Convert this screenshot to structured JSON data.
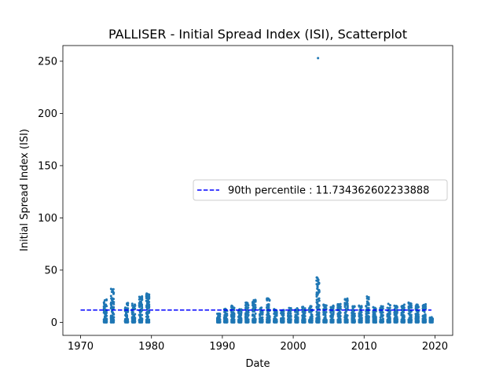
{
  "chart_data": {
    "type": "scatter",
    "title": "PALLISER - Initial Spread Index (ISI), Scatterplot",
    "xlabel": "Date",
    "ylabel": "Initial Spread Index (ISI)",
    "xlim": [
      1967.5,
      2022.5
    ],
    "ylim": [
      -12.5,
      265
    ],
    "x_ticks": [
      1970,
      1980,
      1990,
      2000,
      2010,
      2020
    ],
    "y_ticks": [
      0,
      50,
      100,
      150,
      200,
      250
    ],
    "point_color": "#1f77b4",
    "grid": false,
    "legend_position": "center-right",
    "reference_line": {
      "label": "90th percentile : 11.734362602233888",
      "value": 11.734362602233888,
      "x_range": [
        1970,
        2019.5
      ],
      "color": "#0000ff",
      "style": "dashed"
    },
    "season_groups": [
      {
        "year": 1973,
        "max": 22,
        "n": 14
      },
      {
        "year": 1974,
        "max": 33,
        "n": 16
      },
      {
        "year": 1976,
        "max": 19,
        "n": 12
      },
      {
        "year": 1977,
        "max": 18,
        "n": 14
      },
      {
        "year": 1978,
        "max": 26,
        "n": 16
      },
      {
        "year": 1979,
        "max": 28,
        "n": 16
      },
      {
        "year": 1989,
        "max": 10,
        "n": 12
      },
      {
        "year": 1990,
        "max": 13,
        "n": 12
      },
      {
        "year": 1991,
        "max": 16,
        "n": 12
      },
      {
        "year": 1992,
        "max": 13,
        "n": 12
      },
      {
        "year": 1993,
        "max": 20,
        "n": 14
      },
      {
        "year": 1994,
        "max": 22,
        "n": 14
      },
      {
        "year": 1995,
        "max": 14,
        "n": 12
      },
      {
        "year": 1996,
        "max": 23,
        "n": 14
      },
      {
        "year": 1997,
        "max": 13,
        "n": 12
      },
      {
        "year": 1998,
        "max": 12,
        "n": 12
      },
      {
        "year": 1999,
        "max": 14,
        "n": 12
      },
      {
        "year": 2000,
        "max": 14,
        "n": 12
      },
      {
        "year": 2001,
        "max": 15,
        "n": 12
      },
      {
        "year": 2002,
        "max": 16,
        "n": 12
      },
      {
        "year": 2003,
        "max": 44,
        "n": 20
      },
      {
        "year": 2004,
        "max": 17,
        "n": 12
      },
      {
        "year": 2005,
        "max": 16,
        "n": 12
      },
      {
        "year": 2006,
        "max": 18,
        "n": 12
      },
      {
        "year": 2007,
        "max": 23,
        "n": 14
      },
      {
        "year": 2008,
        "max": 16,
        "n": 12
      },
      {
        "year": 2009,
        "max": 16,
        "n": 12
      },
      {
        "year": 2010,
        "max": 25,
        "n": 14
      },
      {
        "year": 2011,
        "max": 15,
        "n": 12
      },
      {
        "year": 2012,
        "max": 16,
        "n": 12
      },
      {
        "year": 2013,
        "max": 18,
        "n": 12
      },
      {
        "year": 2014,
        "max": 16,
        "n": 12
      },
      {
        "year": 2015,
        "max": 17,
        "n": 12
      },
      {
        "year": 2016,
        "max": 19,
        "n": 14
      },
      {
        "year": 2017,
        "max": 17,
        "n": 12
      },
      {
        "year": 2018,
        "max": 18,
        "n": 12
      },
      {
        "year": 2019,
        "max": 5,
        "n": 6
      }
    ],
    "extra_points": [
      {
        "x": 2003.5,
        "y": 253
      },
      {
        "x": 2003.35,
        "y": 43
      },
      {
        "x": 2003.45,
        "y": 42
      },
      {
        "x": 1974.3,
        "y": 32
      },
      {
        "x": 1979.6,
        "y": 24
      }
    ]
  }
}
